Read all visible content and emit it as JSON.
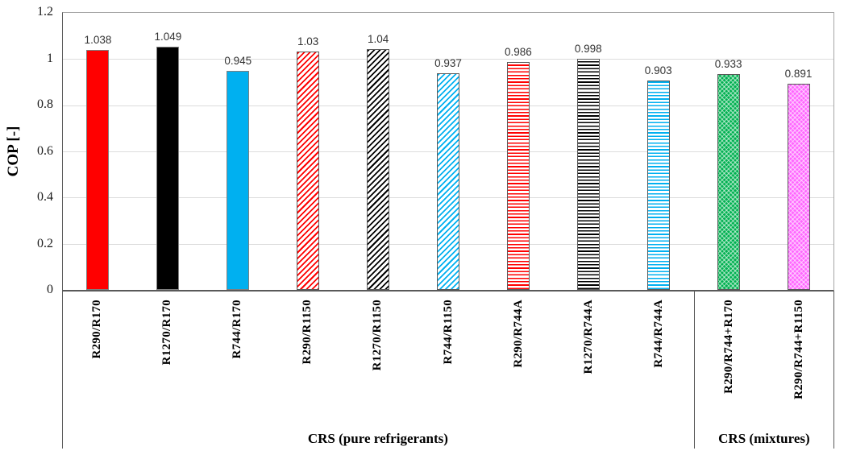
{
  "chart_data": {
    "type": "bar",
    "title": "",
    "xlabel": "",
    "ylabel": "COP [-]",
    "ylim": [
      0,
      1.2
    ],
    "yticks": [
      0,
      0.2,
      0.4,
      0.6,
      0.8,
      1,
      1.2
    ],
    "ytick_labels": [
      "0",
      "0.2",
      "0.4",
      "0.6",
      "0.8",
      "1",
      "1.2"
    ],
    "grid": true,
    "legend": "none",
    "groups": [
      {
        "label": "CRS (pure refrigerants)",
        "span": 9
      },
      {
        "label": "CRS (mixtures)",
        "span": 2
      }
    ],
    "categories": [
      "R290/R170",
      "R1270/R170",
      "R744/R170",
      "R290/R1150",
      "R1270/R1150",
      "R744/R1150",
      "R290/R744A",
      "R1270/R744A",
      "R744/R744A",
      "R290/R744+R170",
      "R290/R744+R1150"
    ],
    "values": [
      1.038,
      1.049,
      0.945,
      1.03,
      1.04,
      0.937,
      0.986,
      0.998,
      0.903,
      0.933,
      0.891
    ],
    "bars": [
      {
        "category": "R290/R170",
        "value": 1.038,
        "label": "1.038",
        "color": "#FF0000",
        "pattern": "solid"
      },
      {
        "category": "R1270/R170",
        "value": 1.049,
        "label": "1.049",
        "color": "#000000",
        "pattern": "solid"
      },
      {
        "category": "R744/R170",
        "value": 0.945,
        "label": "0.945",
        "color": "#00B0F0",
        "pattern": "solid"
      },
      {
        "category": "R290/R1150",
        "value": 1.03,
        "label": "1.03",
        "color": "#FF0000",
        "pattern": "diagonal"
      },
      {
        "category": "R1270/R1150",
        "value": 1.04,
        "label": "1.04",
        "color": "#000000",
        "pattern": "diagonal"
      },
      {
        "category": "R744/R1150",
        "value": 0.937,
        "label": "0.937",
        "color": "#00B0F0",
        "pattern": "diagonal"
      },
      {
        "category": "R290/R744A",
        "value": 0.986,
        "label": "0.986",
        "color": "#FF0000",
        "pattern": "horizontal"
      },
      {
        "category": "R1270/R744A",
        "value": 0.998,
        "label": "0.998",
        "color": "#000000",
        "pattern": "horizontal"
      },
      {
        "category": "R744/R744A",
        "value": 0.903,
        "label": "0.903",
        "color": "#00B0F0",
        "pattern": "horizontal"
      },
      {
        "category": "R290/R744+R170",
        "value": 0.933,
        "label": "0.933",
        "color": "#00B050",
        "pattern": "crosshatch"
      },
      {
        "category": "R290/R744+R1150",
        "value": 0.891,
        "label": "0.891",
        "color": "#FF66FF",
        "pattern": "crosshatch"
      }
    ],
    "style_colors": {
      "gridline": "#dcdcdc",
      "axis_line": "#595959",
      "frame_line": "#a6a6a6",
      "bar_border": "#595959",
      "value_label_text": "#333333"
    }
  }
}
